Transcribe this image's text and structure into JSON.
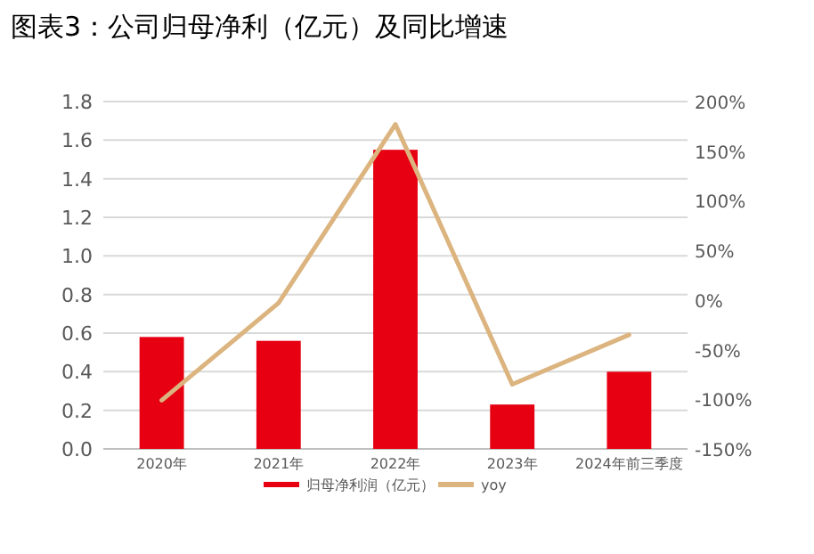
{
  "chart_data": {
    "type": "bar",
    "title": "图表3：公司归母净利（亿元）及同比增速",
    "categories": [
      "2020年",
      "2021年",
      "2022年",
      "2023年",
      "2024年前三季度"
    ],
    "series": [
      {
        "name": "归母净利润（亿元）",
        "color": "#e60012",
        "values": [
          0.58,
          0.56,
          1.55,
          0.23,
          0.4
        ]
      },
      {
        "name": "yoy",
        "type": "line",
        "axis": "y2",
        "color": "#dcb47f",
        "values": [
          -101,
          -3,
          177,
          -85,
          -35
        ]
      }
    ],
    "ylim": [
      0,
      1.8
    ],
    "yticks": [
      {
        "value": 0,
        "label": "0.0"
      },
      {
        "value": 0.2,
        "label": "0.2"
      },
      {
        "value": 0.4,
        "label": "0.4"
      },
      {
        "value": 0.6,
        "label": "0.6"
      },
      {
        "value": 0.8,
        "label": "0.8"
      },
      {
        "value": 1,
        "label": "1.0"
      },
      {
        "value": 1.2,
        "label": "1.2"
      },
      {
        "value": 1.4,
        "label": "1.4"
      },
      {
        "value": 1.6,
        "label": "1.6"
      },
      {
        "value": 1.8,
        "label": "1.8"
      }
    ],
    "y2lim": [
      -150,
      200
    ],
    "y2ticks": [
      {
        "value": -150,
        "label": "-150%"
      },
      {
        "value": -100,
        "label": "-100%"
      },
      {
        "value": -50,
        "label": "-50%"
      },
      {
        "value": 0,
        "label": "0%"
      },
      {
        "value": 50,
        "label": "50%"
      },
      {
        "value": 100,
        "label": "100%"
      },
      {
        "value": 150,
        "label": "150%"
      },
      {
        "value": 200,
        "label": "200%"
      }
    ],
    "grid": "y",
    "legend": "bottom",
    "marker": "none",
    "line_style": "solid"
  }
}
